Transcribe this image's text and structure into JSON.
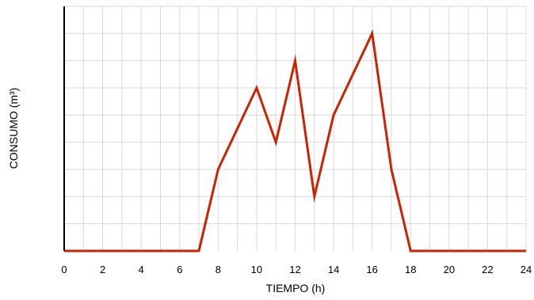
{
  "chart_data": {
    "type": "line",
    "xlabel": "TIEMPO (h)",
    "ylabel": "CONSUMO (m³)",
    "xlim": [
      0,
      24
    ],
    "ylim": [
      0,
      9
    ],
    "x_ticks": [
      0,
      2,
      4,
      6,
      8,
      10,
      12,
      14,
      16,
      18,
      20,
      22,
      24
    ],
    "grid": true,
    "colors": {
      "line": "#cc2200",
      "grid": "#d9d9d9",
      "axis": "#000000"
    },
    "series": [
      {
        "x": [
          0,
          7,
          8,
          10,
          11,
          12,
          13,
          14,
          16,
          17,
          18,
          24
        ],
        "y": [
          0,
          0,
          3,
          6,
          4,
          7,
          2,
          5,
          8,
          3,
          0,
          0
        ]
      }
    ]
  }
}
